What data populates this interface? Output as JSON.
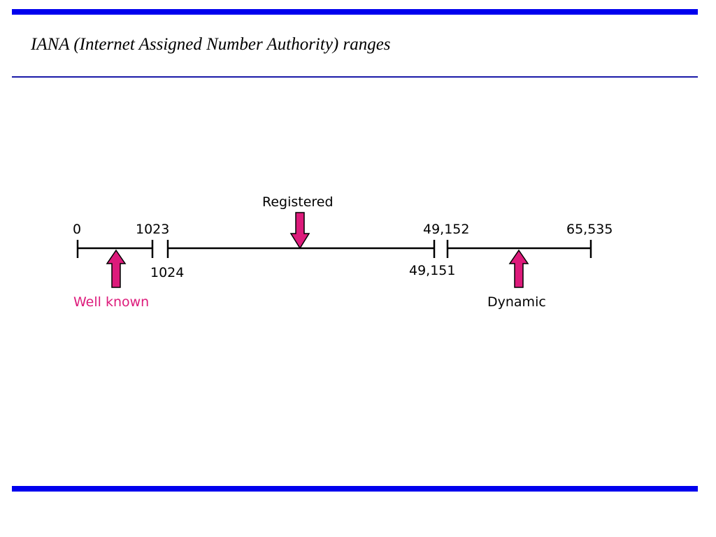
{
  "slide": {
    "title": "IANA (Internet Assigned Number Authority) ranges"
  },
  "diagram": {
    "boundaries": {
      "start": "0",
      "well_known_end": "1023",
      "registered_start": "1024",
      "registered_end": "49,151",
      "dynamic_start": "49,152",
      "end": "65,535"
    },
    "ranges": {
      "well_known": "Well known",
      "registered": "Registered",
      "dynamic": "Dynamic"
    },
    "colors": {
      "arrow": "#dd1b7b",
      "well_known_label": "#dd1b7b",
      "line": "#000000",
      "bars": "#0000ee"
    }
  }
}
